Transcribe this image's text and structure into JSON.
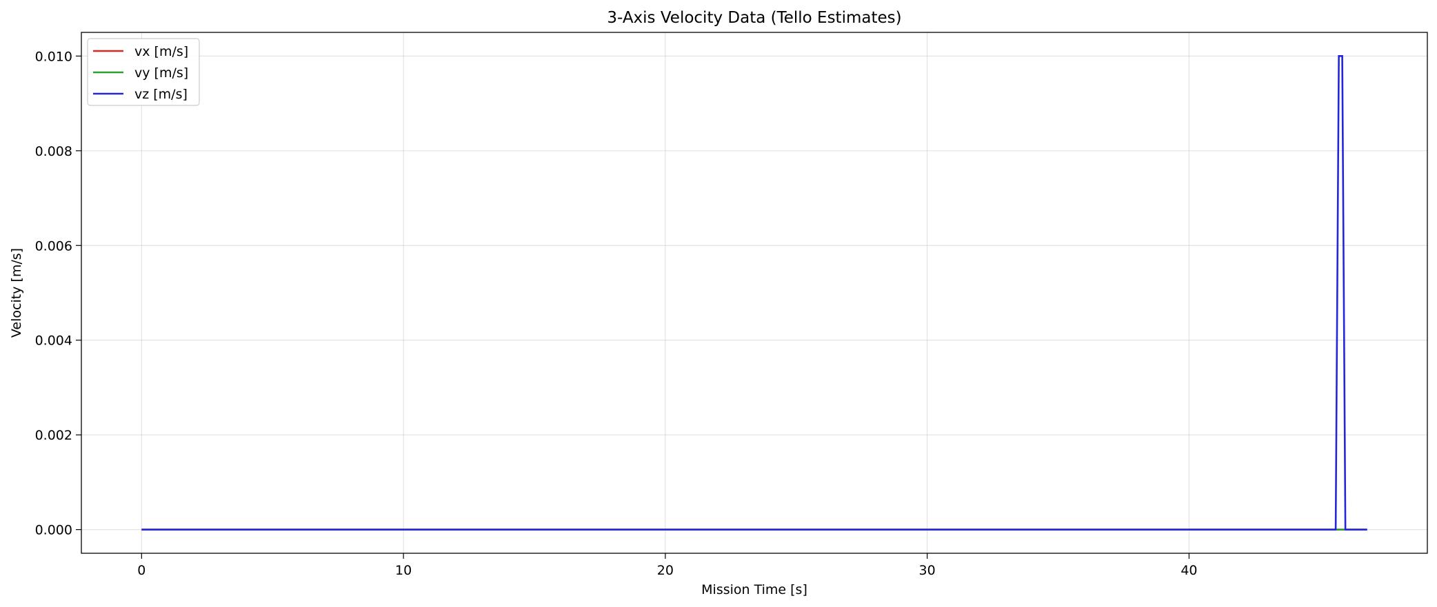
{
  "chart_data": {
    "type": "line",
    "title": "3-Axis Velocity Data (Tello Estimates)",
    "xlabel": "Mission Time [s]",
    "ylabel": "Velocity [m/s]",
    "xlim": [
      -2.3,
      49.1
    ],
    "ylim": [
      -0.0005,
      0.0105
    ],
    "x_ticks": [
      0,
      10,
      20,
      30,
      40
    ],
    "x_tick_labels": [
      "0",
      "10",
      "20",
      "30",
      "40"
    ],
    "y_ticks": [
      0,
      0.002,
      0.004,
      0.006,
      0.008,
      0.01
    ],
    "y_tick_labels": [
      "0.000",
      "0.002",
      "0.004",
      "0.006",
      "0.008",
      "0.010"
    ],
    "grid": true,
    "legend_position": "top-left",
    "series": [
      {
        "name": "vx [m/s]",
        "color": "#d62728",
        "x": [
          0,
          46.8
        ],
        "y": [
          0,
          0
        ]
      },
      {
        "name": "vy [m/s]",
        "color": "#2ca02c",
        "x": [
          0,
          46.8
        ],
        "y": [
          0,
          0
        ]
      },
      {
        "name": "vz [m/s]",
        "color": "#2626d9",
        "x": [
          0,
          45.6,
          45.72,
          45.85,
          45.97,
          46.8
        ],
        "y": [
          0,
          0,
          0.01,
          0.01,
          0,
          0
        ]
      }
    ]
  }
}
